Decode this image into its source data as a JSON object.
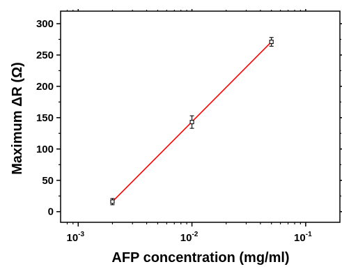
{
  "chart_data": {
    "type": "scatter",
    "xlabel": "AFP concentration (mg/ml)",
    "ylabel": "Maximum ΔR (Ω)",
    "x_scale": "log",
    "xlim": [
      0.0007,
      0.2
    ],
    "ylim": [
      -17,
      320
    ],
    "x_ticks": [
      {
        "value": 0.001,
        "base": "10",
        "exp": "-3"
      },
      {
        "value": 0.01,
        "base": "10",
        "exp": "-2"
      },
      {
        "value": 0.1,
        "base": "10",
        "exp": "-1"
      }
    ],
    "y_ticks": [
      0,
      50,
      100,
      150,
      200,
      250,
      300
    ],
    "grid": false,
    "series": [
      {
        "x": [
          0.002,
          0.01,
          0.05
        ],
        "y": [
          16,
          143,
          271
        ],
        "yerr": [
          5,
          10,
          7
        ],
        "marker": "open-square",
        "color": "#000000"
      }
    ],
    "fit_line": {
      "x": [
        0.002,
        0.05
      ],
      "y": [
        16,
        271
      ],
      "color": "#ff0000"
    }
  }
}
